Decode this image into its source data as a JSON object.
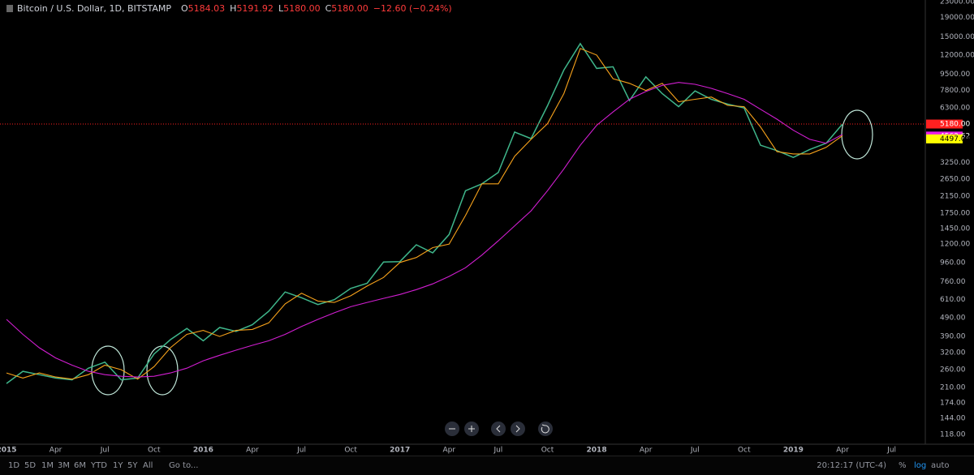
{
  "header": {
    "title": "Bitcoin / U.S. Dollar, 1D, BITSTAMP",
    "ohlc": [
      [
        "O",
        "5184.03"
      ],
      [
        "H",
        "5191.92"
      ],
      [
        "L",
        "5180.00"
      ],
      [
        "C",
        "5180.00"
      ]
    ],
    "change": "−12.60 (−0.24%)"
  },
  "toolbar": {
    "ranges": [
      "1D",
      "5D",
      "1M",
      "3M",
      "6M",
      "YTD",
      "1Y",
      "5Y",
      "All"
    ],
    "goto": "Go to...",
    "time": "20:12:17 (UTC-4)",
    "scale_options": [
      "%",
      "log",
      "auto"
    ]
  },
  "chart_data": {
    "type": "line",
    "log_scale": true,
    "x": [
      "2015-01",
      "2015-02",
      "2015-03",
      "2015-04",
      "2015-05",
      "2015-06",
      "2015-07",
      "2015-08",
      "2015-09",
      "2015-10",
      "2015-11",
      "2015-12",
      "2016-01",
      "2016-02",
      "2016-03",
      "2016-04",
      "2016-05",
      "2016-06",
      "2016-07",
      "2016-08",
      "2016-09",
      "2016-10",
      "2016-11",
      "2016-12",
      "2017-01",
      "2017-02",
      "2017-03",
      "2017-04",
      "2017-05",
      "2017-06",
      "2017-07",
      "2017-08",
      "2017-09",
      "2017-10",
      "2017-11",
      "2017-12",
      "2018-01",
      "2018-02",
      "2018-03",
      "2018-04",
      "2018-05",
      "2018-06",
      "2018-07",
      "2018-08",
      "2018-09",
      "2018-10",
      "2018-11",
      "2018-12",
      "2019-01",
      "2019-02",
      "2019-03",
      "2019-04"
    ],
    "series": [
      {
        "color": "#3fb68b",
        "values": [
          220,
          255,
          245,
          235,
          230,
          265,
          285,
          230,
          235,
          315,
          375,
          430,
          370,
          435,
          415,
          450,
          530,
          670,
          625,
          575,
          610,
          700,
          745,
          965,
          970,
          1190,
          1080,
          1350,
          2300,
          2500,
          2870,
          4700,
          4340,
          6470,
          10000,
          13800,
          10200,
          10400,
          6900,
          9200,
          7500,
          6400,
          7750,
          7000,
          6600,
          6300,
          4000,
          3750,
          3450,
          3800,
          4100,
          5180
        ]
      },
      {
        "color": "#f7a21b",
        "values": [
          250,
          235,
          250,
          238,
          232,
          245,
          275,
          260,
          232,
          270,
          340,
          400,
          420,
          390,
          420,
          425,
          460,
          580,
          660,
          600,
          590,
          640,
          720,
          800,
          960,
          1020,
          1150,
          1200,
          1700,
          2500,
          2500,
          3500,
          4300,
          5200,
          7500,
          13000,
          12000,
          9000,
          8500,
          7800,
          8500,
          6800,
          7000,
          7200,
          6500,
          6400,
          5000,
          3700,
          3600,
          3600,
          3900,
          4497.05
        ]
      },
      {
        "color": "#d21ed2",
        "values": [
          480,
          400,
          340,
          300,
          275,
          255,
          245,
          240,
          238,
          240,
          250,
          265,
          290,
          310,
          330,
          350,
          370,
          400,
          440,
          480,
          520,
          560,
          590,
          620,
          650,
          690,
          740,
          810,
          900,
          1050,
          1250,
          1500,
          1800,
          2300,
          3000,
          4000,
          5100,
          6000,
          7000,
          7700,
          8300,
          8600,
          8400,
          8000,
          7500,
          7000,
          6200,
          5500,
          4800,
          4300,
          4100,
          4563.62
        ]
      }
    ],
    "xlim": [
      "2015-01",
      "2019-09"
    ],
    "xticks": [
      {
        "value": "2015-01",
        "label": "2015"
      },
      {
        "value": "2015-04",
        "label": "Apr"
      },
      {
        "value": "2015-07",
        "label": "Jul"
      },
      {
        "value": "2015-10",
        "label": "Oct"
      },
      {
        "value": "2016-01",
        "label": "2016"
      },
      {
        "value": "2016-04",
        "label": "Apr"
      },
      {
        "value": "2016-07",
        "label": "Jul"
      },
      {
        "value": "2016-10",
        "label": "Oct"
      },
      {
        "value": "2017-01",
        "label": "2017"
      },
      {
        "value": "2017-04",
        "label": "Apr"
      },
      {
        "value": "2017-07",
        "label": "Jul"
      },
      {
        "value": "2017-10",
        "label": "Oct"
      },
      {
        "value": "2018-01",
        "label": "2018"
      },
      {
        "value": "2018-04",
        "label": "Apr"
      },
      {
        "value": "2018-07",
        "label": "Jul"
      },
      {
        "value": "2018-10",
        "label": "Oct"
      },
      {
        "value": "2019-01",
        "label": "2019"
      },
      {
        "value": "2019-04",
        "label": "Apr"
      },
      {
        "value": "2019-07",
        "label": "Jul"
      }
    ],
    "ylim": [
      105,
      23000
    ],
    "yticks": [
      {
        "value": 118,
        "label": "118.00"
      },
      {
        "value": 144,
        "label": "144.00"
      },
      {
        "value": 174,
        "label": "174.00"
      },
      {
        "value": 210,
        "label": "210.00"
      },
      {
        "value": 260,
        "label": "260.00"
      },
      {
        "value": 320,
        "label": "320.00"
      },
      {
        "value": 390,
        "label": "390.00"
      },
      {
        "value": 490,
        "label": "490.00"
      },
      {
        "value": 610,
        "label": "610.00"
      },
      {
        "value": 760,
        "label": "760.00"
      },
      {
        "value": 960,
        "label": "960.00"
      },
      {
        "value": 1200,
        "label": "1200.00"
      },
      {
        "value": 1450,
        "label": "1450.00"
      },
      {
        "value": 1750,
        "label": "1750.00"
      },
      {
        "value": 2150,
        "label": "2150.00"
      },
      {
        "value": 2650,
        "label": "2650.00"
      },
      {
        "value": 3250,
        "label": "3250.00"
      },
      {
        "value": 6300,
        "label": "6300.00"
      },
      {
        "value": 7800,
        "label": "7800.00"
      },
      {
        "value": 9500,
        "label": "9500.00"
      },
      {
        "value": 12000,
        "label": "12000.00"
      },
      {
        "value": 15000,
        "label": "15000.00"
      },
      {
        "value": 19000,
        "label": "19000.00"
      },
      {
        "value": 23000,
        "label": "23000.00"
      }
    ],
    "price_markers": [
      {
        "value": 5180,
        "label": "5180.00",
        "color": "#ff2020"
      },
      {
        "value": 4563.62,
        "label": "4563.62",
        "color": "#e91ee9"
      },
      {
        "value": 4497.05,
        "label": "4497.05",
        "color": "#ffff00"
      }
    ]
  }
}
